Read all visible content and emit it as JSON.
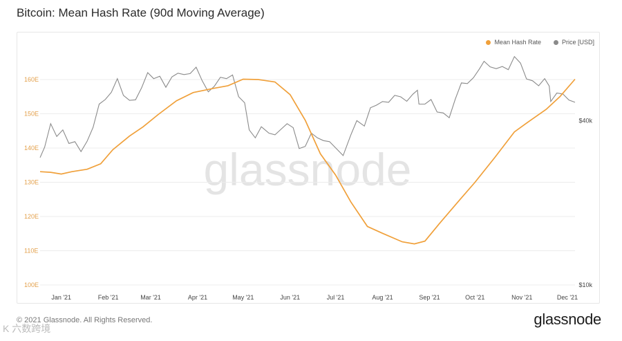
{
  "title": "Bitcoin: Mean Hash Rate (90d Moving Average)",
  "legend": {
    "hash_rate": "Mean Hash Rate",
    "price": "Price [USD]"
  },
  "colors": {
    "hash_rate": "#f0a03a",
    "price": "#8a8a8a",
    "left_axis_text": "#e3a04b",
    "grid": "#ececec"
  },
  "watermark": "glassnode",
  "footer": {
    "copyright": "© 2021 Glassnode. All Rights Reserved.",
    "brand": "glassnode"
  },
  "corner_mark": "K 六数跨境",
  "chart_data": {
    "type": "line",
    "title": "Bitcoin: Mean Hash Rate (90d Moving Average)",
    "x_domain": [
      "2021-01-01",
      "2021-12-20"
    ],
    "x_ticks": [
      "Jan '21",
      "Feb '21",
      "Mar '21",
      "Apr '21",
      "May '21",
      "Jun '21",
      "Jul '21",
      "Aug '21",
      "Sep '21",
      "Oct '21",
      "Nov '21",
      "Dec '21"
    ],
    "y_left": {
      "label": "",
      "ticks": [
        "100E",
        "110E",
        "120E",
        "130E",
        "140E",
        "150E",
        "160E"
      ],
      "range": [
        100,
        160
      ]
    },
    "y_right": {
      "label": "",
      "scale": "log",
      "ticks": [
        "$10k",
        "$40k"
      ],
      "tick_values": [
        10000,
        40000
      ],
      "range": [
        10000,
        78000
      ]
    },
    "series": [
      {
        "name": "Mean Hash Rate",
        "axis": "left",
        "unit": "EH/s",
        "points": [
          [
            "2021-01-01",
            133.1
          ],
          [
            "2021-01-08",
            132.9
          ],
          [
            "2021-01-15",
            132.4
          ],
          [
            "2021-01-22",
            133.1
          ],
          [
            "2021-02-01",
            133.8
          ],
          [
            "2021-02-10",
            135.4
          ],
          [
            "2021-02-18",
            139.5
          ],
          [
            "2021-03-01",
            143.5
          ],
          [
            "2021-03-10",
            146.2
          ],
          [
            "2021-03-20",
            149.8
          ],
          [
            "2021-04-01",
            153.8
          ],
          [
            "2021-04-12",
            156.2
          ],
          [
            "2021-04-25",
            157.4
          ],
          [
            "2021-05-05",
            158.2
          ],
          [
            "2021-05-15",
            160.1
          ],
          [
            "2021-05-25",
            160.0
          ],
          [
            "2021-06-05",
            159.3
          ],
          [
            "2021-06-15",
            155.6
          ],
          [
            "2021-06-25",
            148.1
          ],
          [
            "2021-07-05",
            138.3
          ],
          [
            "2021-07-15",
            132.1
          ],
          [
            "2021-07-25",
            124.3
          ],
          [
            "2021-08-05",
            117.1
          ],
          [
            "2021-08-15",
            115.1
          ],
          [
            "2021-08-28",
            112.6
          ],
          [
            "2021-09-05",
            112.0
          ],
          [
            "2021-09-12",
            112.8
          ],
          [
            "2021-09-22",
            118.2
          ],
          [
            "2021-10-05",
            124.9
          ],
          [
            "2021-10-15",
            130.0
          ],
          [
            "2021-10-28",
            137.2
          ],
          [
            "2021-11-10",
            144.7
          ],
          [
            "2021-11-20",
            147.9
          ],
          [
            "2021-12-01",
            151.3
          ],
          [
            "2021-12-10",
            155.0
          ],
          [
            "2021-12-20",
            160.1
          ]
        ]
      },
      {
        "name": "Price [USD]",
        "axis": "right",
        "unit": "USD",
        "points": [
          [
            "2021-01-01",
            29300
          ],
          [
            "2021-01-04",
            32000
          ],
          [
            "2021-01-08",
            39000
          ],
          [
            "2021-01-12",
            35000
          ],
          [
            "2021-01-16",
            37000
          ],
          [
            "2021-01-20",
            33000
          ],
          [
            "2021-01-24",
            33500
          ],
          [
            "2021-01-28",
            30800
          ],
          [
            "2021-02-01",
            33600
          ],
          [
            "2021-02-05",
            37800
          ],
          [
            "2021-02-09",
            46000
          ],
          [
            "2021-02-13",
            47800
          ],
          [
            "2021-02-17",
            50800
          ],
          [
            "2021-02-21",
            57000
          ],
          [
            "2021-02-25",
            49500
          ],
          [
            "2021-03-01",
            47500
          ],
          [
            "2021-03-05",
            47700
          ],
          [
            "2021-03-09",
            52800
          ],
          [
            "2021-03-13",
            60000
          ],
          [
            "2021-03-17",
            57000
          ],
          [
            "2021-03-21",
            58200
          ],
          [
            "2021-03-25",
            53000
          ],
          [
            "2021-03-29",
            57900
          ],
          [
            "2021-04-02",
            59700
          ],
          [
            "2021-04-06",
            59000
          ],
          [
            "2021-04-10",
            59500
          ],
          [
            "2021-04-14",
            62800
          ],
          [
            "2021-04-18",
            56000
          ],
          [
            "2021-04-22",
            51000
          ],
          [
            "2021-04-26",
            53500
          ],
          [
            "2021-04-30",
            57700
          ],
          [
            "2021-05-04",
            57000
          ],
          [
            "2021-05-08",
            58800
          ],
          [
            "2021-05-12",
            49000
          ],
          [
            "2021-05-16",
            46500
          ],
          [
            "2021-05-19",
            37000
          ],
          [
            "2021-05-23",
            34600
          ],
          [
            "2021-05-27",
            38000
          ],
          [
            "2021-06-01",
            36000
          ],
          [
            "2021-06-05",
            35500
          ],
          [
            "2021-06-09",
            37200
          ],
          [
            "2021-06-13",
            39000
          ],
          [
            "2021-06-17",
            37700
          ],
          [
            "2021-06-21",
            31600
          ],
          [
            "2021-06-25",
            32200
          ],
          [
            "2021-06-29",
            36000
          ],
          [
            "2021-07-03",
            34600
          ],
          [
            "2021-07-07",
            33800
          ],
          [
            "2021-07-11",
            33500
          ],
          [
            "2021-07-15",
            31800
          ],
          [
            "2021-07-20",
            29800
          ],
          [
            "2021-07-25",
            35400
          ],
          [
            "2021-07-29",
            40000
          ],
          [
            "2021-08-03",
            38200
          ],
          [
            "2021-08-07",
            44600
          ],
          [
            "2021-08-11",
            45600
          ],
          [
            "2021-08-15",
            47000
          ],
          [
            "2021-08-19",
            46700
          ],
          [
            "2021-08-23",
            49500
          ],
          [
            "2021-08-27",
            48900
          ],
          [
            "2021-08-31",
            47100
          ],
          [
            "2021-09-04",
            50000
          ],
          [
            "2021-09-07",
            51700
          ],
          [
            "2021-09-08",
            46000
          ],
          [
            "2021-09-12",
            46000
          ],
          [
            "2021-09-16",
            47800
          ],
          [
            "2021-09-20",
            43000
          ],
          [
            "2021-09-24",
            42700
          ],
          [
            "2021-09-28",
            41000
          ],
          [
            "2021-10-02",
            48000
          ],
          [
            "2021-10-06",
            55000
          ],
          [
            "2021-10-10",
            54700
          ],
          [
            "2021-10-14",
            57500
          ],
          [
            "2021-10-18",
            62000
          ],
          [
            "2021-10-21",
            66000
          ],
          [
            "2021-10-25",
            63000
          ],
          [
            "2021-10-29",
            62000
          ],
          [
            "2021-11-02",
            63200
          ],
          [
            "2021-11-06",
            61500
          ],
          [
            "2021-11-10",
            68700
          ],
          [
            "2021-11-14",
            65000
          ],
          [
            "2021-11-18",
            56900
          ],
          [
            "2021-11-22",
            56000
          ],
          [
            "2021-11-26",
            53700
          ],
          [
            "2021-11-30",
            57000
          ],
          [
            "2021-12-03",
            53600
          ],
          [
            "2021-12-04",
            47000
          ],
          [
            "2021-12-08",
            50500
          ],
          [
            "2021-12-12",
            50100
          ],
          [
            "2021-12-16",
            47600
          ],
          [
            "2021-12-20",
            46700
          ]
        ]
      }
    ]
  }
}
